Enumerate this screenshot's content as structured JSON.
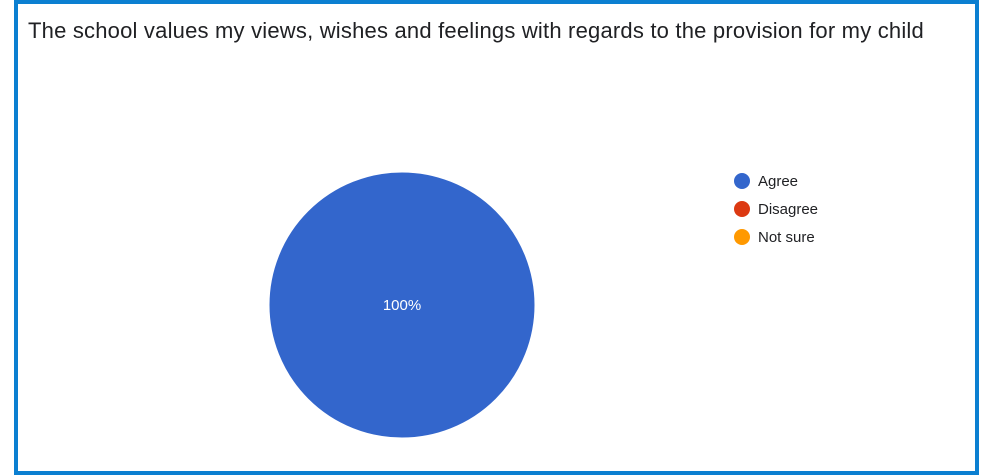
{
  "chart_data": {
    "type": "pie",
    "title": "The school values my views, wishes and feelings with regards to the provision for my child",
    "categories": [
      "Agree",
      "Disagree",
      "Not sure"
    ],
    "values": [
      100,
      0,
      0
    ],
    "colors": [
      "#3366cc",
      "#dc3912",
      "#ff9900"
    ],
    "slice_labels": [
      "100%",
      "",
      ""
    ],
    "legend_position": "right"
  },
  "colors": {
    "frame_border": "#0b7fd1"
  }
}
